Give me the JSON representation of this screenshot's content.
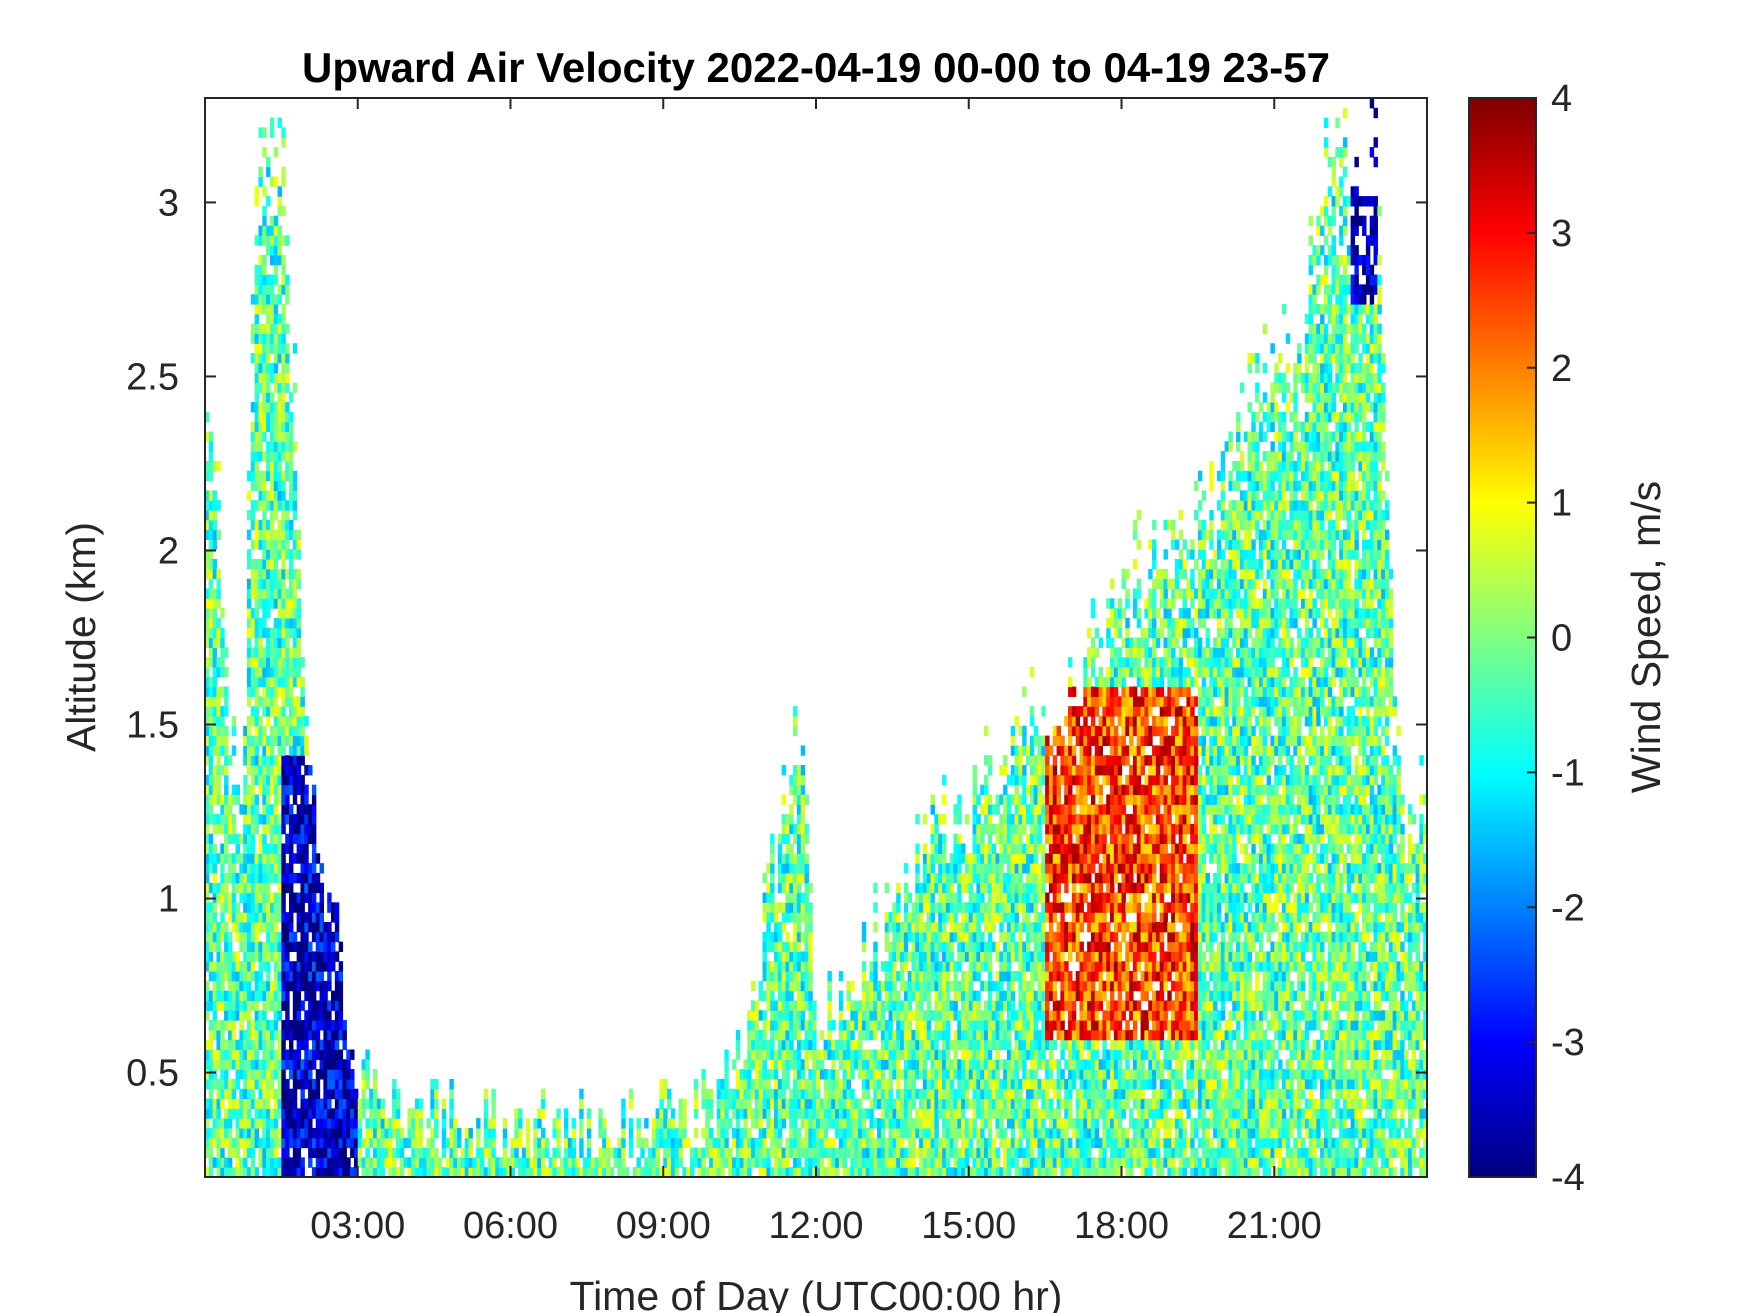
{
  "chart_data": {
    "type": "heatmap",
    "title": "Upward Air Velocity 2022-04-19 00-00 to 04-19 23-57",
    "xlabel": "Time of Day (UTC00:00 hr)",
    "ylabel": "Altitude (km)",
    "xlim": [
      0,
      24
    ],
    "ylim": [
      0.2,
      3.3
    ],
    "xticks": [
      3,
      6,
      9,
      12,
      15,
      18,
      21
    ],
    "xtick_labels": [
      "03:00",
      "06:00",
      "09:00",
      "12:00",
      "15:00",
      "18:00",
      "21:00"
    ],
    "yticks": [
      0.5,
      1,
      1.5,
      2,
      2.5,
      3
    ],
    "ytick_labels": [
      "0.5",
      "1",
      "1.5",
      "2",
      "2.5",
      "3"
    ],
    "colorbar": {
      "label": "Wind Speed, m/s",
      "colormap": "jet",
      "range": [
        -4,
        4
      ],
      "ticks": [
        -4,
        -3,
        -2,
        -1,
        0,
        1,
        2,
        3,
        4
      ],
      "tick_labels": [
        "-4",
        "-3",
        "-2",
        "-1",
        "0",
        "1",
        "2",
        "3",
        "4"
      ]
    },
    "background": "#ffffff",
    "grid": false,
    "profile_top_km": [
      [
        0.0,
        2.6
      ],
      [
        0.25,
        2.3
      ],
      [
        0.5,
        1.5
      ],
      [
        0.75,
        1.4
      ],
      [
        1.0,
        3.3
      ],
      [
        1.5,
        3.3
      ],
      [
        1.75,
        2.6
      ],
      [
        2.0,
        1.6
      ],
      [
        2.25,
        1.2
      ],
      [
        2.5,
        1.0
      ],
      [
        2.75,
        0.75
      ],
      [
        3.0,
        0.55
      ],
      [
        3.5,
        0.42
      ],
      [
        4.0,
        0.4
      ],
      [
        5.0,
        0.38
      ],
      [
        6.0,
        0.37
      ],
      [
        7.0,
        0.36
      ],
      [
        8.0,
        0.36
      ],
      [
        9.0,
        0.37
      ],
      [
        10.0,
        0.42
      ],
      [
        10.5,
        0.6
      ],
      [
        11.0,
        1.0
      ],
      [
        11.5,
        1.45
      ],
      [
        11.75,
        1.5
      ],
      [
        12.0,
        0.7
      ],
      [
        12.5,
        0.75
      ],
      [
        13.0,
        0.9
      ],
      [
        13.5,
        1.0
      ],
      [
        14.0,
        1.2
      ],
      [
        14.5,
        1.3
      ],
      [
        15.0,
        1.35
      ],
      [
        15.5,
        1.45
      ],
      [
        16.0,
        1.55
      ],
      [
        16.5,
        1.6
      ],
      [
        17.0,
        1.7
      ],
      [
        17.5,
        1.85
      ],
      [
        18.0,
        2.0
      ],
      [
        18.5,
        2.05
      ],
      [
        19.0,
        2.1
      ],
      [
        19.5,
        2.2
      ],
      [
        20.0,
        2.4
      ],
      [
        20.5,
        2.6
      ],
      [
        21.0,
        2.7
      ],
      [
        21.5,
        2.6
      ],
      [
        22.0,
        3.3
      ],
      [
        22.5,
        3.3
      ],
      [
        23.0,
        3.3
      ],
      [
        23.5,
        1.3
      ],
      [
        24.0,
        1.3
      ]
    ],
    "features": [
      {
        "x_range": [
          1.5,
          3.0
        ],
        "alt_range_km": [
          0.2,
          1.4
        ],
        "velocity_ms": -3.5
      },
      {
        "x_range": [
          16.5,
          19.5
        ],
        "alt_range_km": [
          0.6,
          1.6
        ],
        "velocity_ms": 2.5
      },
      {
        "x_range": [
          22.5,
          23.0
        ],
        "alt_range_km": [
          2.7,
          3.3
        ],
        "velocity_ms": -4.0
      }
    ]
  }
}
